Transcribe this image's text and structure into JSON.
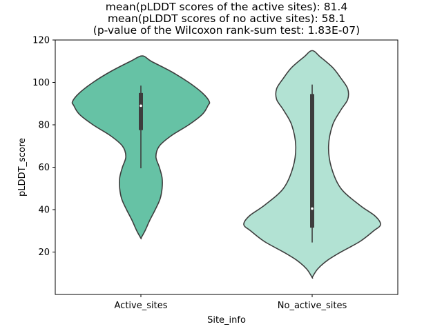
{
  "chart_data": {
    "type": "violin",
    "title_lines": [
      "mean(pLDDT scores of the active sites): 81.4",
      "mean(pLDDT scores of no active sites): 58.1",
      "(p-value of the Wilcoxon rank-sum test: 1.83E-07)"
    ],
    "xlabel": "Site_info",
    "ylabel": "pLDDT_score",
    "ylim": [
      0,
      120
    ],
    "yticks": [
      20,
      40,
      60,
      80,
      100,
      120
    ],
    "categories": [
      "Active_sites",
      "No_active_sites"
    ],
    "colors": [
      "#66c2a5",
      "#b2e2d3"
    ],
    "edge_color": "#3d3d3d",
    "grid": false,
    "legend": "none",
    "violins": [
      {
        "category": "Active_sites",
        "min": 26.5,
        "max": 112.5,
        "profile": [
          [
            26.5,
            0.0
          ],
          [
            30,
            0.06
          ],
          [
            35,
            0.13
          ],
          [
            40,
            0.21
          ],
          [
            45,
            0.28
          ],
          [
            50,
            0.31
          ],
          [
            55,
            0.31
          ],
          [
            60,
            0.27
          ],
          [
            65,
            0.22
          ],
          [
            70,
            0.27
          ],
          [
            75,
            0.45
          ],
          [
            80,
            0.7
          ],
          [
            85,
            0.9
          ],
          [
            89,
            0.98
          ],
          [
            91,
            1.0
          ],
          [
            95,
            0.9
          ],
          [
            100,
            0.7
          ],
          [
            105,
            0.45
          ],
          [
            110,
            0.15
          ],
          [
            112.5,
            0.02
          ]
        ],
        "whisker": [
          59.5,
          98.5
        ],
        "q1": 77.5,
        "q3": 95,
        "median": 89
      },
      {
        "category": "No_active_sites",
        "min": 8,
        "max": 115,
        "profile": [
          [
            8,
            0.0
          ],
          [
            12,
            0.08
          ],
          [
            16,
            0.22
          ],
          [
            20,
            0.42
          ],
          [
            25,
            0.7
          ],
          [
            30,
            0.9
          ],
          [
            33,
            1.0
          ],
          [
            37,
            0.92
          ],
          [
            42,
            0.7
          ],
          [
            50,
            0.42
          ],
          [
            60,
            0.28
          ],
          [
            70,
            0.24
          ],
          [
            80,
            0.3
          ],
          [
            87,
            0.42
          ],
          [
            92,
            0.52
          ],
          [
            97,
            0.52
          ],
          [
            102,
            0.42
          ],
          [
            107,
            0.3
          ],
          [
            112,
            0.12
          ],
          [
            115,
            0.0
          ]
        ],
        "whisker": [
          24.5,
          99
        ],
        "q1": 31.5,
        "q3": 94.5,
        "median": 40.5
      }
    ]
  }
}
